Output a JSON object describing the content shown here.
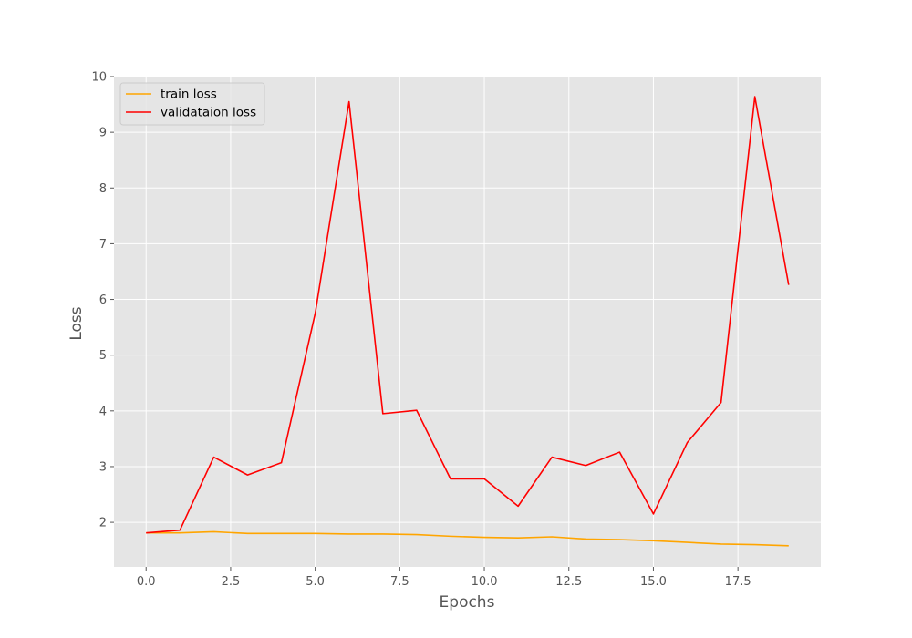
{
  "chart_data": {
    "type": "line",
    "title": "",
    "xlabel": "Epochs",
    "ylabel": "Loss",
    "xlim": [
      -0.95,
      19.95
    ],
    "ylim": [
      1.2,
      10
    ],
    "x_ticks": [
      0.0,
      2.5,
      5.0,
      7.5,
      10.0,
      12.5,
      15.0,
      17.5
    ],
    "x_tick_labels": [
      "0.0",
      "2.5",
      "5.0",
      "7.5",
      "10.0",
      "12.5",
      "15.0",
      "17.5"
    ],
    "y_ticks": [
      2,
      3,
      4,
      5,
      6,
      7,
      8,
      9,
      10
    ],
    "y_tick_labels": [
      "2",
      "3",
      "4",
      "5",
      "6",
      "7",
      "8",
      "9",
      "10"
    ],
    "grid": true,
    "legend_position": "top-left",
    "x": [
      0,
      1,
      2,
      3,
      4,
      5,
      6,
      7,
      8,
      9,
      10,
      11,
      12,
      13,
      14,
      15,
      16,
      17,
      18,
      19
    ],
    "series": [
      {
        "name": "train loss",
        "color": "#ffa500",
        "values": [
          1.81,
          1.81,
          1.83,
          1.8,
          1.8,
          1.8,
          1.79,
          1.79,
          1.78,
          1.75,
          1.73,
          1.72,
          1.74,
          1.7,
          1.69,
          1.67,
          1.64,
          1.61,
          1.6,
          1.58
        ]
      },
      {
        "name": "validataion loss",
        "color": "#ff0000",
        "values": [
          1.81,
          1.86,
          3.17,
          2.85,
          3.07,
          5.75,
          9.55,
          3.95,
          4.01,
          2.78,
          2.78,
          2.29,
          3.17,
          3.02,
          3.26,
          2.15,
          3.43,
          4.15,
          9.64,
          6.26
        ]
      }
    ]
  }
}
